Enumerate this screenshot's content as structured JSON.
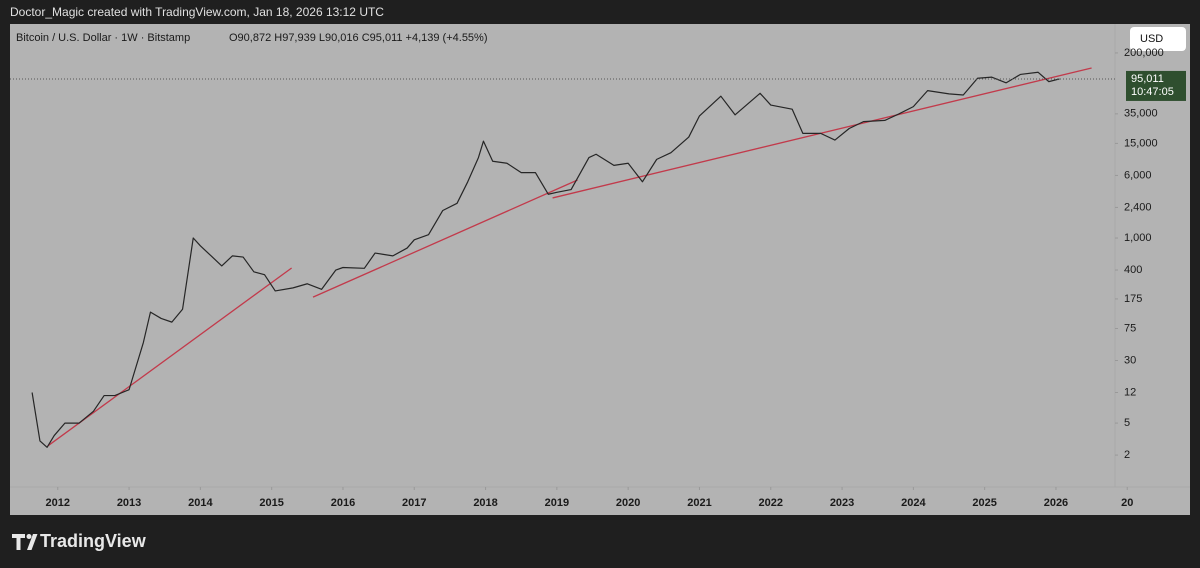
{
  "attribution": "Doctor_Magic created with TradingView.com, Jan 18, 2026 13:12 UTC",
  "brand": "TradingView",
  "chart_data": {
    "type": "line",
    "title": "Bitcoin / U.S. Dollar · 1W · Bitstamp",
    "ohlc": "O90,872 H97,939 L90,016 C95,011 +4,139 (+4.55%)",
    "currency": "USD",
    "last_price_label": "95,011",
    "countdown": "10:47:05",
    "log_scale": true,
    "grid": false,
    "color": "#262626",
    "x": [
      2011.64,
      2011.75,
      2011.85,
      2011.95,
      2012.1,
      2012.3,
      2012.5,
      2012.65,
      2012.8,
      2013.0,
      2013.2,
      2013.3,
      2013.45,
      2013.6,
      2013.75,
      2013.9,
      2014.0,
      2014.15,
      2014.3,
      2014.45,
      2014.6,
      2014.75,
      2014.9,
      2015.05,
      2015.3,
      2015.5,
      2015.7,
      2015.9,
      2016.0,
      2016.3,
      2016.45,
      2016.7,
      2016.9,
      2017.0,
      2017.2,
      2017.4,
      2017.6,
      2017.75,
      2017.9,
      2017.97,
      2018.1,
      2018.3,
      2018.5,
      2018.7,
      2018.88,
      2019.0,
      2019.2,
      2019.45,
      2019.55,
      2019.8,
      2020.0,
      2020.2,
      2020.4,
      2020.6,
      2020.85,
      2021.0,
      2021.3,
      2021.5,
      2021.85,
      2022.0,
      2022.3,
      2022.45,
      2022.7,
      2022.9,
      2023.1,
      2023.3,
      2023.6,
      2023.8,
      2024.0,
      2024.2,
      2024.5,
      2024.7,
      2024.9,
      2025.1,
      2025.3,
      2025.5,
      2025.75,
      2025.9,
      2026.05
    ],
    "values": [
      12,
      3,
      2.5,
      3.5,
      5,
      5,
      7,
      11,
      11,
      13,
      50,
      120,
      100,
      90,
      130,
      1000,
      800,
      600,
      450,
      600,
      580,
      380,
      350,
      220,
      240,
      270,
      230,
      400,
      430,
      420,
      650,
      600,
      750,
      950,
      1100,
      2200,
      2700,
      5000,
      10000,
      16000,
      9000,
      8500,
      6500,
      6500,
      3500,
      3700,
      4000,
      10000,
      11000,
      8000,
      8500,
      5000,
      9500,
      11500,
      18000,
      33000,
      58000,
      34000,
      63000,
      45000,
      40000,
      20000,
      20000,
      16500,
      23000,
      28000,
      29000,
      35000,
      43000,
      68000,
      62000,
      60000,
      97000,
      100000,
      85000,
      108000,
      115000,
      88000,
      95011
    ],
    "trendlines": [
      {
        "color": "#c23a4b",
        "x": [
          2011.86,
          2015.28
        ],
        "values": [
          2.6,
          424
        ]
      },
      {
        "color": "#c23a4b",
        "x": [
          2015.58,
          2019.29
        ],
        "values": [
          184,
          5260
        ]
      },
      {
        "color": "#c23a4b",
        "x": [
          2018.94,
          2026.5
        ],
        "values": [
          3150,
          130000
        ]
      }
    ],
    "xlim": [
      2011.33,
      2027.88
    ],
    "ylim": [
      0.36,
      458000
    ],
    "xticks": [
      2012,
      2013,
      2014,
      2015,
      2016,
      2017,
      2018,
      2019,
      2020,
      2021,
      2022,
      2023,
      2024,
      2025,
      2026,
      {
        "value": 2027,
        "label": "20"
      }
    ],
    "yticks": [
      2,
      5,
      12,
      30,
      75,
      175,
      400,
      {
        "value": 1000,
        "label": "1,000"
      },
      {
        "value": 2400,
        "label": "2,400"
      },
      {
        "value": 6000,
        "label": "6,000"
      },
      {
        "value": 15000,
        "label": "15,000"
      },
      {
        "value": 35000,
        "label": "35,000"
      },
      {
        "value": 200000,
        "label": "200,000"
      }
    ]
  }
}
